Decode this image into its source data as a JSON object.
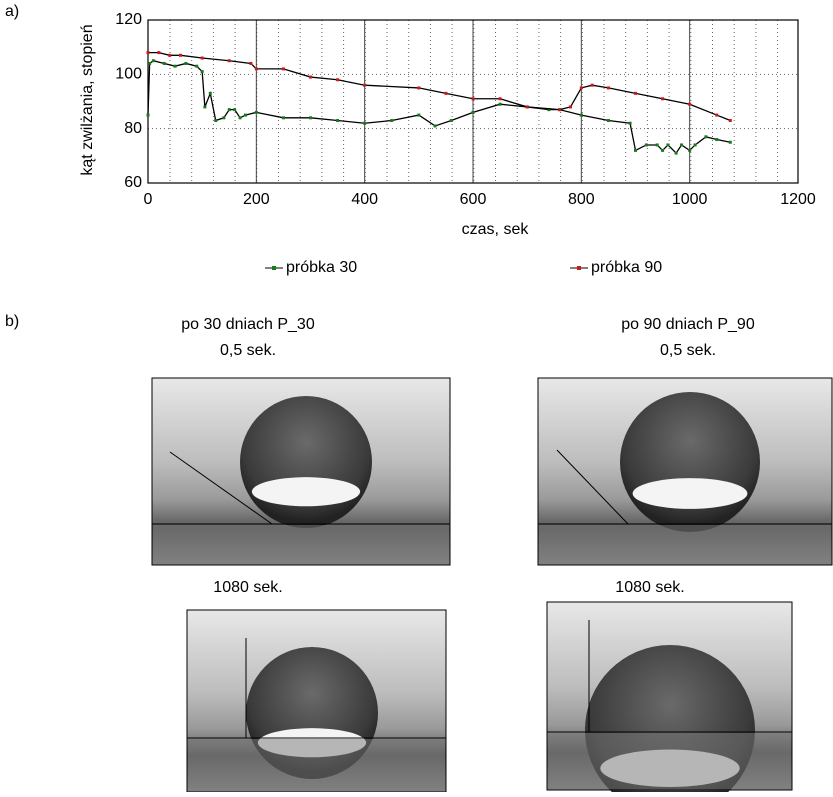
{
  "chart_data": {
    "type": "line",
    "xlabel": "czas, sek",
    "ylabel": "kąt zwilżania, stopień",
    "xlim": [
      0,
      1200
    ],
    "ylim": [
      60,
      120
    ],
    "xticks": [
      0,
      200,
      400,
      600,
      800,
      1000,
      1200
    ],
    "yticks": [
      60,
      80,
      100,
      120
    ],
    "grid": true,
    "legend": "bottom",
    "series": [
      {
        "name": "próbka 30",
        "color": "#1a7a1a",
        "x": [
          0,
          3,
          10,
          30,
          50,
          70,
          90,
          100,
          105,
          115,
          125,
          140,
          150,
          160,
          170,
          180,
          200,
          250,
          300,
          350,
          400,
          450,
          500,
          530,
          560,
          600,
          650,
          700,
          740,
          760,
          800,
          850,
          890,
          900,
          920,
          940,
          950,
          960,
          975,
          985,
          1000,
          1010,
          1030,
          1050,
          1075
        ],
        "values": [
          85,
          104,
          105,
          104,
          103,
          104,
          103,
          101,
          88,
          93,
          83,
          84,
          87,
          87,
          84,
          85,
          86,
          84,
          84,
          83,
          82,
          83,
          85,
          81,
          83,
          86,
          89,
          88,
          87,
          87,
          85,
          83,
          82,
          72,
          74,
          74,
          72,
          74,
          71,
          74,
          72,
          74,
          77,
          76,
          75
        ]
      },
      {
        "name": "próbka 90",
        "color": "#cc1a1a",
        "x": [
          0,
          20,
          40,
          60,
          100,
          150,
          190,
          200,
          250,
          300,
          350,
          400,
          500,
          550,
          600,
          650,
          700,
          760,
          780,
          800,
          820,
          850,
          900,
          950,
          1000,
          1050,
          1075
        ],
        "values": [
          108,
          108,
          107,
          107,
          106,
          105,
          104,
          102,
          102,
          99,
          98,
          96,
          95,
          93,
          91,
          91,
          88,
          87,
          88,
          95,
          96,
          95,
          93,
          91,
          89,
          85,
          83
        ]
      }
    ]
  },
  "panels": {
    "a": "a)",
    "b": "b)"
  },
  "photos": [
    {
      "title": "po 30 dniach P_30",
      "time": "0,5 sek."
    },
    {
      "title": "po 90 dniach P_90",
      "time": "0,5 sek."
    },
    {
      "time": "1080 sek."
    },
    {
      "time": "1080 sek."
    }
  ]
}
